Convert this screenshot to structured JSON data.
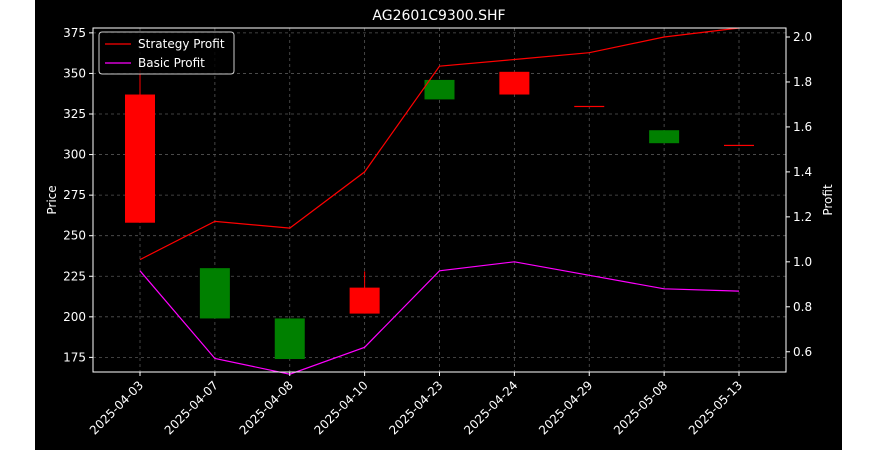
{
  "chart_data": {
    "type": "candlestick",
    "title": "AG2601C9300.SHF",
    "xlabel": "",
    "ylabel": "Price",
    "y2label": "Profit",
    "categories": [
      "2025-04-03",
      "2025-04-07",
      "2025-04-08",
      "2025-04-10",
      "2025-04-23",
      "2025-04-24",
      "2025-04-29",
      "2025-05-08",
      "2025-05-13"
    ],
    "ylim": [
      166,
      378
    ],
    "y2lim": [
      0.51,
      2.04
    ],
    "yticks": [
      175,
      200,
      225,
      250,
      275,
      300,
      325,
      350,
      375
    ],
    "y2ticks": [
      0.6,
      0.8,
      1.0,
      1.2,
      1.4,
      1.6,
      1.8,
      2.0
    ],
    "grid": true,
    "legend_position": "top-left",
    "candles": [
      {
        "open": 258,
        "high": 352,
        "low": 258,
        "close": 337
      },
      {
        "open": 230,
        "high": 230,
        "low": 199,
        "close": 199
      },
      {
        "open": 199,
        "high": 199,
        "low": 174,
        "close": 174
      },
      {
        "open": 202,
        "high": 228,
        "low": 202,
        "close": 218
      },
      {
        "open": 346,
        "high": 346,
        "low": 334,
        "close": 334
      },
      {
        "open": 337,
        "high": 351,
        "low": 337,
        "close": 351
      },
      {
        "open": 330,
        "high": 330,
        "low": 330,
        "close": 330
      },
      {
        "open": 315,
        "high": 315,
        "low": 307,
        "close": 307
      },
      {
        "open": 306,
        "high": 306,
        "low": 306,
        "close": 306
      }
    ],
    "series": [
      {
        "name": "Strategy Profit",
        "color": "#ff0000",
        "axis": "right",
        "values": [
          1.01,
          1.18,
          1.15,
          1.4,
          1.87,
          1.9,
          1.93,
          2.0,
          2.04
        ]
      },
      {
        "name": "Basic Profit",
        "color": "#ff00ff",
        "axis": "right",
        "values": [
          0.96,
          0.57,
          0.5,
          0.62,
          0.96,
          1.0,
          0.94,
          0.88,
          0.87
        ]
      }
    ],
    "colors": {
      "up": "#ff0000",
      "down": "#008000",
      "background": "#000000",
      "text": "#ffffff"
    }
  }
}
